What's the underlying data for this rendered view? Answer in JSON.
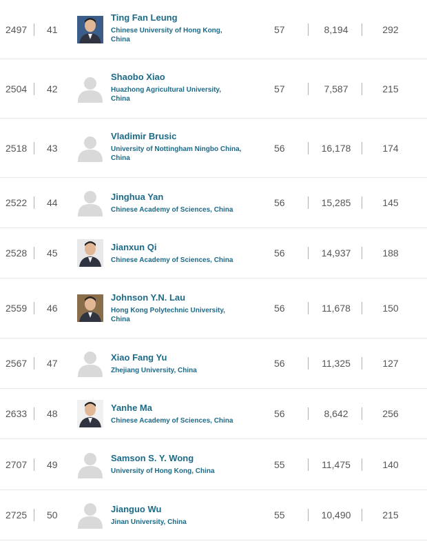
{
  "rows": [
    {
      "world_rank": "2497",
      "national_rank": "41",
      "name": "Ting Fan Leung",
      "institution": "Chinese University of Hong Kong, China",
      "h_index": "57",
      "citations": "8,194",
      "publications": "292",
      "avatar": "photo",
      "photo_bg": "#3a5d8a"
    },
    {
      "world_rank": "2504",
      "national_rank": "42",
      "name": "Shaobo Xiao",
      "institution": "Huazhong Agricultural University, China",
      "h_index": "57",
      "citations": "7,587",
      "publications": "215",
      "avatar": "placeholder"
    },
    {
      "world_rank": "2518",
      "national_rank": "43",
      "name": "Vladimir Brusic",
      "institution": "University of Nottingham Ningbo China, China",
      "h_index": "56",
      "citations": "16,178",
      "publications": "174",
      "avatar": "placeholder"
    },
    {
      "world_rank": "2522",
      "national_rank": "44",
      "name": "Jinghua Yan",
      "institution": "Chinese Academy of Sciences, China",
      "h_index": "56",
      "citations": "15,285",
      "publications": "145",
      "avatar": "placeholder"
    },
    {
      "world_rank": "2528",
      "national_rank": "45",
      "name": "Jianxun Qi",
      "institution": "Chinese Academy of Sciences, China",
      "h_index": "56",
      "citations": "14,937",
      "publications": "188",
      "avatar": "photo",
      "photo_bg": "#e8e8e8"
    },
    {
      "world_rank": "2559",
      "national_rank": "46",
      "name": "Johnson Y.N. Lau",
      "institution": "Hong Kong Polytechnic University, China",
      "h_index": "56",
      "citations": "11,678",
      "publications": "150",
      "avatar": "photo",
      "photo_bg": "#8a6d4a"
    },
    {
      "world_rank": "2567",
      "national_rank": "47",
      "name": "Xiao Fang Yu",
      "institution": "Zhejiang University, China",
      "h_index": "56",
      "citations": "11,325",
      "publications": "127",
      "avatar": "placeholder"
    },
    {
      "world_rank": "2633",
      "national_rank": "48",
      "name": "Yanhe Ma",
      "institution": "Chinese Academy of Sciences, China",
      "h_index": "56",
      "citations": "8,642",
      "publications": "256",
      "avatar": "photo",
      "photo_bg": "#f0f0f0"
    },
    {
      "world_rank": "2707",
      "national_rank": "49",
      "name": "Samson S. Y. Wong",
      "institution": "University of Hong Kong, China",
      "h_index": "55",
      "citations": "11,475",
      "publications": "140",
      "avatar": "placeholder"
    },
    {
      "world_rank": "2725",
      "national_rank": "50",
      "name": "Jianguo Wu",
      "institution": "Jinan University, China",
      "h_index": "55",
      "citations": "10,490",
      "publications": "215",
      "avatar": "placeholder"
    }
  ],
  "colors": {
    "link": "#1b6a88",
    "separator": "#9bb4c0",
    "placeholder": "#d9d9d9"
  }
}
